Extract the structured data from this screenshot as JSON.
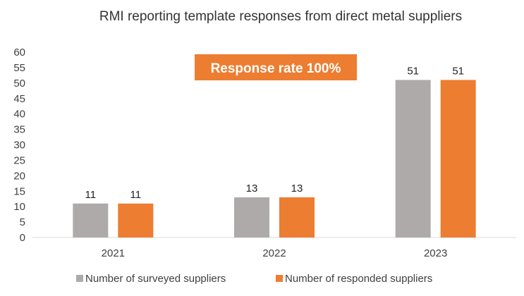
{
  "chart_data": {
    "type": "bar",
    "title": "RMI reporting template responses from direct metal suppliers",
    "categories": [
      "2021",
      "2022",
      "2023"
    ],
    "series": [
      {
        "name": "Number of surveyed suppliers",
        "values": [
          11,
          13,
          51
        ],
        "color": "#AEAAAA"
      },
      {
        "name": "Number of responded suppliers",
        "values": [
          11,
          13,
          51
        ],
        "color": "#ED7D31"
      }
    ],
    "ylim": [
      0,
      60
    ],
    "yticks": [
      0,
      5,
      10,
      15,
      20,
      25,
      30,
      35,
      40,
      45,
      50,
      55,
      60
    ],
    "grid": false,
    "legend_position": "bottom",
    "annotation": {
      "text": "Response rate 100%",
      "color": "#ED7D31"
    }
  }
}
